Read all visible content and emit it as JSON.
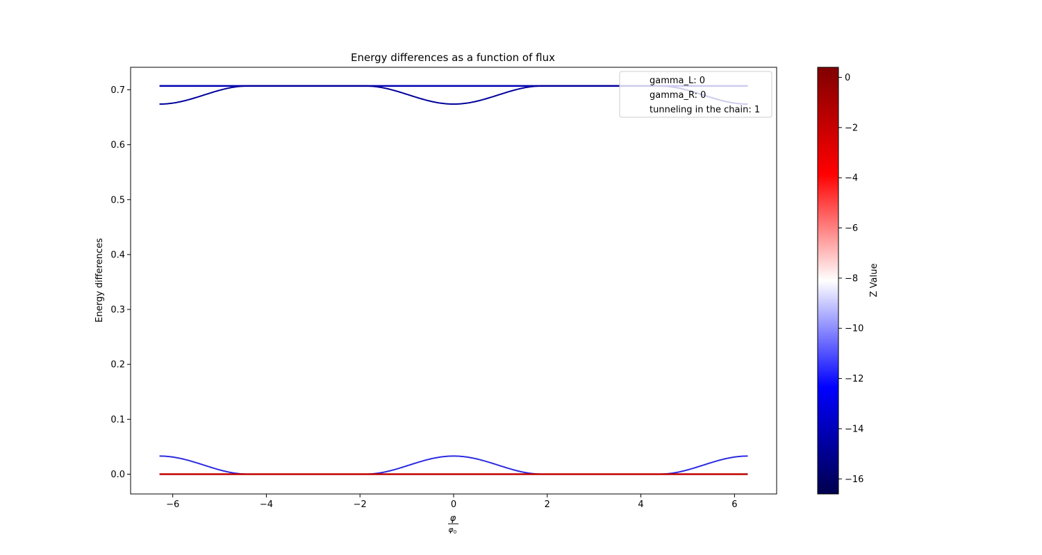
{
  "chart_data": {
    "type": "line",
    "title": "Energy differences as a function of flux",
    "xlabel_num": "φ",
    "xlabel_den": "φ",
    "xlabel_den_sub": "0",
    "ylabel": "Energy differences",
    "xlim": [
      -6.9,
      6.9
    ],
    "ylim": [
      -0.036,
      0.741
    ],
    "xticks": [
      -6,
      -4,
      -2,
      0,
      2,
      4,
      6
    ],
    "xtick_labels": [
      "−6",
      "−4",
      "−2",
      "0",
      "2",
      "4",
      "6"
    ],
    "yticks": [
      0.0,
      0.1,
      0.2,
      0.3,
      0.4,
      0.5,
      0.6,
      0.7
    ],
    "ytick_labels": [
      "0.0",
      "0.1",
      "0.2",
      "0.3",
      "0.4",
      "0.5",
      "0.6",
      "0.7"
    ],
    "grid": false,
    "x_range": [
      -6.283,
      6.283
    ],
    "series": [
      {
        "type": "constant",
        "value": 0.707,
        "color": "#0000b4"
      },
      {
        "type": "cosine",
        "base": 0.707,
        "amplitude": -0.033,
        "period": 6.283,
        "halfwidth": 1.9,
        "color": "#00009a"
      },
      {
        "type": "cosine",
        "base": 0.0,
        "amplitude": 0.033,
        "period": 6.283,
        "halfwidth": 1.9,
        "color": "#2a2ae0"
      },
      {
        "type": "constant",
        "value": 0.0,
        "color": "#c00000"
      }
    ],
    "legend": {
      "placement": "upper right",
      "entries": [
        "gamma_L: 0",
        "gamma_R: 0",
        "tunneling in the chain: 1"
      ]
    },
    "colorbar": {
      "label": "Z Value",
      "range": [
        -16.6,
        0.4
      ],
      "ticks": [
        0,
        -2,
        -4,
        -6,
        -8,
        -10,
        -12,
        -14,
        -16
      ],
      "tick_labels": [
        "0",
        "−2",
        "−4",
        "−6",
        "−8",
        "−10",
        "−12",
        "−14",
        "−16"
      ],
      "colormap": [
        "#00004d",
        "#0000ff",
        "#ffffff",
        "#ff0000",
        "#800000"
      ]
    }
  }
}
